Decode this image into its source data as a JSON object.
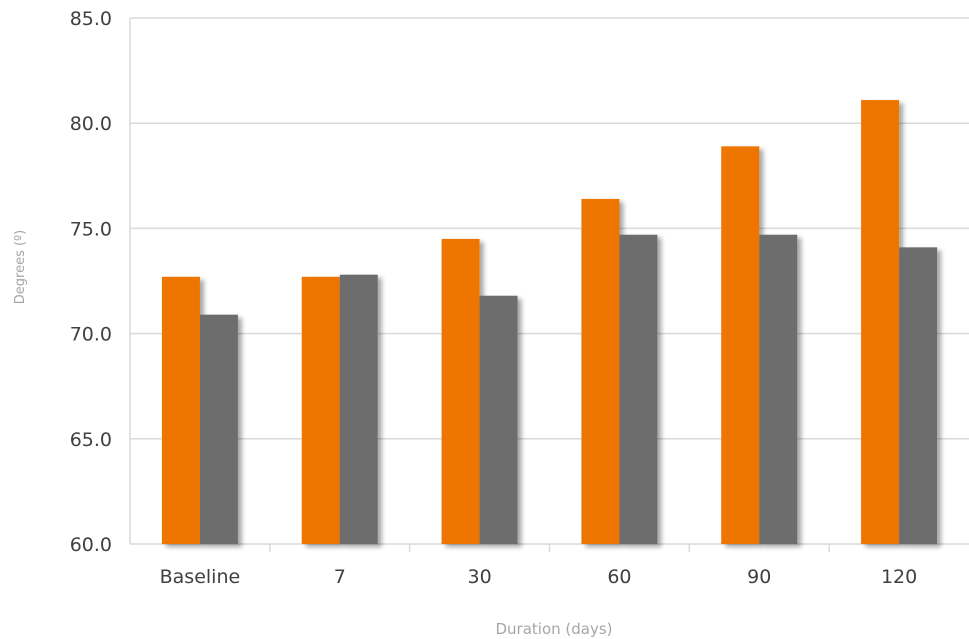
{
  "chart_data": {
    "type": "bar",
    "categories": [
      "Baseline",
      "7",
      "30",
      "60",
      "90",
      "120"
    ],
    "series": [
      {
        "values": [
          72.7,
          72.7,
          74.5,
          76.4,
          78.9,
          81.1
        ],
        "color": "#ed7503"
      },
      {
        "values": [
          70.9,
          72.8,
          71.8,
          74.7,
          74.7,
          74.1
        ],
        "color": "#6d6d6d"
      }
    ],
    "xlabel": "Duration (days)",
    "ylabel": "Degrees (º)",
    "ylim": [
      60,
      85
    ],
    "yticks": [
      "60.0",
      "65.0",
      "70.0",
      "75.0",
      "80.0",
      "85.0"
    ],
    "grid": true,
    "legend": "none"
  }
}
